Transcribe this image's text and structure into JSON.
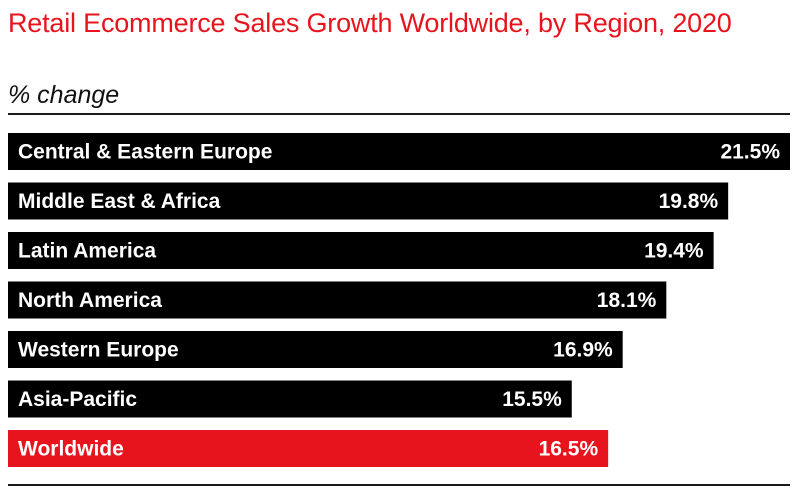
{
  "chart_data": {
    "type": "bar",
    "orientation": "horizontal",
    "title": "Retail Ecommerce Sales Growth Worldwide, by Region, 2020",
    "subtitle": "% change",
    "categories": [
      "Central & Eastern Europe",
      "Middle East & Africa",
      "Latin America",
      "North America",
      "Western Europe",
      "Asia-Pacific",
      "Worldwide"
    ],
    "values": [
      21.5,
      19.8,
      19.4,
      18.1,
      16.9,
      15.5,
      16.5
    ],
    "value_labels": [
      "21.5%",
      "19.8%",
      "19.4%",
      "18.1%",
      "16.9%",
      "15.5%",
      "16.5%"
    ],
    "highlight_category": "Worldwide",
    "xlim": [
      0,
      21.5
    ],
    "grid": false,
    "legend": "none"
  },
  "colors": {
    "title": "#e8141d",
    "bar": "#000000",
    "highlight_bar": "#e8141d",
    "bar_text": "#ffffff"
  }
}
